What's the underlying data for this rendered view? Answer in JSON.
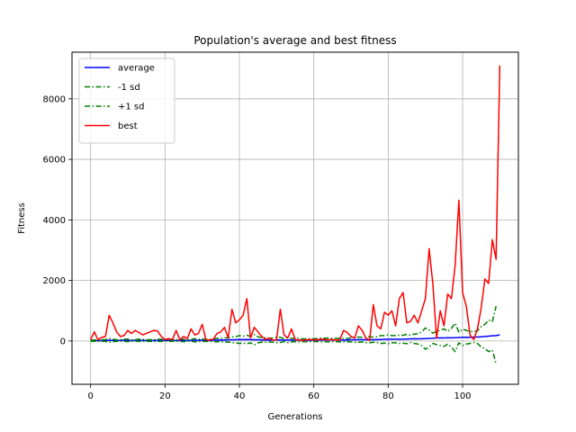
{
  "chart_data": {
    "type": "line",
    "title": "Population's average and best fitness",
    "xlabel": "Generations",
    "ylabel": "Fitness",
    "xlim": [
      -5,
      115
    ],
    "ylim": [
      -1430,
      9540
    ],
    "xticks": [
      0,
      20,
      40,
      60,
      80,
      100
    ],
    "yticks": [
      0,
      2000,
      4000,
      6000,
      8000
    ],
    "grid": true,
    "legend_position": "top-left",
    "series": [
      {
        "name": "average",
        "color": "#0000ff",
        "dash": "solid",
        "values": [
          10,
          15,
          10,
          20,
          15,
          25,
          20,
          15,
          20,
          25,
          20,
          15,
          20,
          25,
          20,
          15,
          20,
          15,
          20,
          25,
          20,
          20,
          20,
          15,
          20,
          20,
          15,
          20,
          25,
          20,
          25,
          20,
          20,
          25,
          30,
          35,
          30,
          40,
          40,
          40,
          50,
          45,
          50,
          45,
          40,
          40,
          35,
          35,
          30,
          30,
          35,
          35,
          30,
          30,
          30,
          30,
          30,
          25,
          25,
          25,
          30,
          30,
          35,
          35,
          35,
          35,
          35,
          30,
          30,
          30,
          40,
          40,
          45,
          45,
          40,
          40,
          45,
          45,
          50,
          55,
          55,
          60,
          60,
          55,
          60,
          65,
          70,
          75,
          70,
          75,
          80,
          85,
          90,
          100,
          105,
          100,
          110,
          105,
          110,
          115,
          120,
          125,
          120,
          130,
          130,
          140,
          150,
          160,
          170,
          180,
          200
        ]
      },
      {
        "name": "-1 sd",
        "color": "#008000",
        "dash": "dashdot",
        "values": [
          -10,
          -5,
          -10,
          -5,
          -15,
          -40,
          -20,
          -10,
          -5,
          -10,
          -20,
          -10,
          -5,
          -10,
          -15,
          -10,
          -5,
          -20,
          -15,
          -10,
          -5,
          -10,
          -5,
          -10,
          -15,
          -20,
          -10,
          -5,
          -30,
          -15,
          -20,
          -10,
          -15,
          -20,
          -25,
          -20,
          -40,
          -30,
          -60,
          -60,
          -80,
          -70,
          -90,
          -60,
          -130,
          -60,
          -40,
          -40,
          -30,
          -40,
          -60,
          -50,
          -20,
          -50,
          -30,
          -20,
          -30,
          -20,
          -20,
          -20,
          -15,
          -20,
          -30,
          -20,
          -30,
          -20,
          -20,
          -30,
          -25,
          -20,
          -30,
          -40,
          -40,
          -30,
          -60,
          -60,
          -40,
          -50,
          -80,
          -70,
          -90,
          -60,
          -60,
          -80,
          -70,
          -90,
          -50,
          -80,
          -100,
          -150,
          -270,
          -200,
          -80,
          -120,
          -150,
          -180,
          -100,
          -200,
          -350,
          -60,
          -150,
          -100,
          -80,
          -50,
          -80,
          -200,
          -250,
          -350,
          -300,
          -750
        ]
      },
      {
        "name": "+1 sd",
        "color": "#008000",
        "dash": "dashdot",
        "values": [
          30,
          35,
          30,
          45,
          45,
          90,
          60,
          40,
          45,
          60,
          60,
          40,
          45,
          60,
          55,
          40,
          45,
          50,
          55,
          60,
          45,
          50,
          45,
          40,
          55,
          60,
          40,
          45,
          80,
          55,
          70,
          50,
          55,
          70,
          85,
          90,
          100,
          110,
          140,
          140,
          180,
          160,
          190,
          150,
          210,
          140,
          110,
          110,
          90,
          100,
          130,
          120,
          80,
          110,
          90,
          80,
          90,
          70,
          70,
          70,
          75,
          80,
          100,
          90,
          100,
          90,
          90,
          90,
          85,
          80,
          110,
          120,
          130,
          120,
          140,
          140,
          130,
          140,
          180,
          180,
          200,
          180,
          180,
          190,
          190,
          220,
          190,
          230,
          240,
          300,
          430,
          370,
          260,
          320,
          360,
          400,
          320,
          420,
          590,
          290,
          390,
          350,
          320,
          310,
          340,
          480,
          550,
          690,
          640,
          1150
        ]
      },
      {
        "name": "best",
        "color": "#ff0000",
        "dash": "solid",
        "values": [
          50,
          300,
          40,
          120,
          150,
          850,
          600,
          300,
          150,
          180,
          350,
          250,
          350,
          280,
          200,
          250,
          300,
          350,
          330,
          150,
          50,
          80,
          50,
          350,
          40,
          150,
          80,
          400,
          200,
          250,
          550,
          50,
          30,
          60,
          250,
          300,
          450,
          100,
          1050,
          600,
          700,
          850,
          1400,
          100,
          450,
          300,
          150,
          50,
          100,
          30,
          40,
          1050,
          200,
          100,
          400,
          50,
          30,
          20,
          40,
          50,
          40,
          40,
          60,
          50,
          40,
          50,
          30,
          40,
          350,
          280,
          150,
          100,
          500,
          350,
          100,
          20,
          1200,
          500,
          400,
          950,
          850,
          1000,
          500,
          1400,
          1600,
          600,
          650,
          850,
          600,
          1000,
          1400,
          3050,
          1900,
          100,
          1000,
          500,
          1550,
          1400,
          2500,
          4650,
          1600,
          1150,
          200,
          50,
          400,
          1100,
          2050,
          1900,
          3350,
          2700,
          9100
        ]
      }
    ]
  }
}
